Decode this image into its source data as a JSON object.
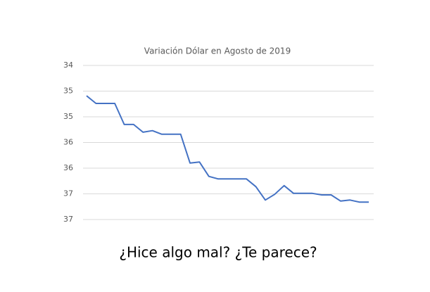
{
  "chart_data": {
    "type": "line",
    "title": "Variación Dólar en Agosto de 2019",
    "categories": [
      null,
      null,
      null,
      null,
      null,
      null,
      null,
      null,
      null,
      null,
      null,
      null,
      null,
      null,
      null,
      null,
      null,
      null,
      null,
      null,
      null,
      null,
      null,
      null,
      null,
      null,
      null,
      null,
      null,
      null,
      null
    ],
    "values": [
      34.59,
      34.74,
      34.74,
      34.74,
      35.15,
      35.15,
      35.3,
      35.27,
      35.34,
      35.34,
      35.34,
      35.9,
      35.88,
      36.16,
      36.21,
      36.21,
      36.21,
      36.21,
      36.36,
      36.62,
      36.51,
      36.34,
      36.49,
      36.49,
      36.49,
      36.52,
      36.52,
      36.64,
      36.62,
      36.66,
      36.66
    ],
    "color": "#4472c4",
    "ylim": [
      34,
      37
    ],
    "y_inverted": true,
    "yticks": [
      34,
      {
        "value": 34.5,
        "label": "35"
      },
      35,
      {
        "value": 35.5,
        "label": "36"
      },
      36,
      {
        "value": 36.5,
        "label": "37"
      },
      37
    ],
    "grid": true
  },
  "caption": "¿Hice algo mal? ¿Te parece?"
}
